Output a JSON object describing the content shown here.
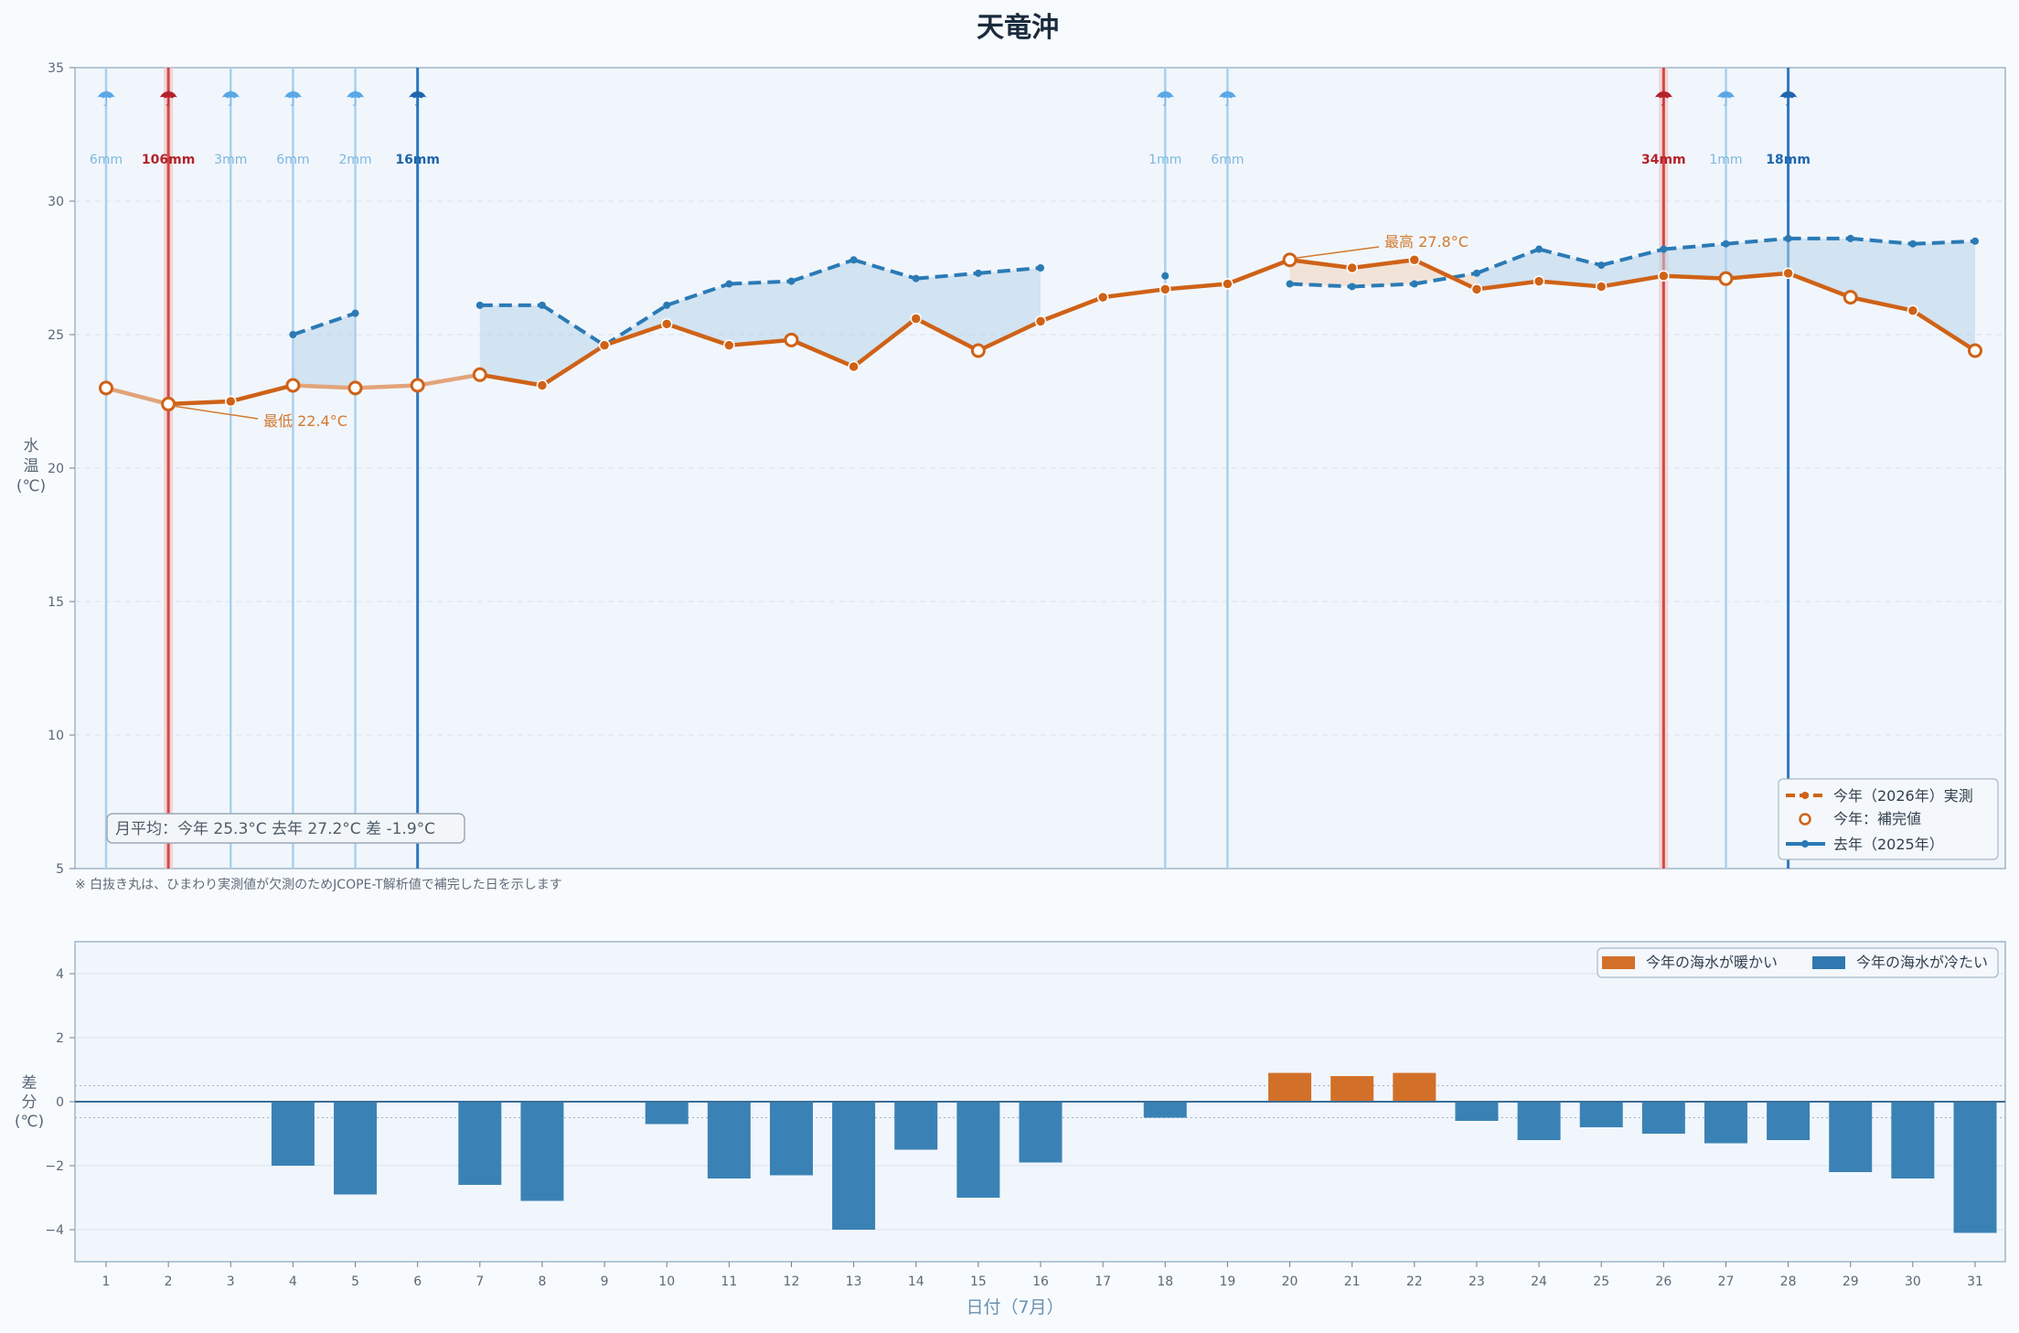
{
  "title": "天竜沖",
  "chart_data": [
    {
      "type": "line",
      "x": [
        1,
        2,
        3,
        4,
        5,
        6,
        7,
        8,
        9,
        10,
        11,
        12,
        13,
        14,
        15,
        16,
        17,
        18,
        19,
        20,
        21,
        22,
        23,
        24,
        25,
        26,
        27,
        28,
        29,
        30,
        31
      ],
      "series": [
        {
          "name": "今年（2026年）実測",
          "color": "#cf6217",
          "values": [
            23.0,
            22.4,
            22.5,
            23.1,
            23.0,
            23.1,
            23.5,
            23.1,
            24.6,
            25.4,
            24.6,
            24.8,
            23.8,
            25.6,
            24.4,
            25.5,
            26.4,
            26.7,
            26.9,
            27.8,
            27.5,
            27.8,
            26.7,
            27.0,
            26.8,
            27.2,
            27.1,
            27.3,
            26.4,
            25.9,
            24.4
          ],
          "imputed_days": [
            1,
            2,
            4,
            5,
            6,
            7,
            12,
            15,
            20,
            27,
            29,
            31
          ]
        },
        {
          "name": "去年（2025年）",
          "color": "#2a7ab5",
          "values": [
            null,
            null,
            null,
            25.0,
            25.8,
            null,
            26.1,
            26.1,
            24.6,
            26.1,
            26.9,
            27.0,
            27.8,
            27.1,
            27.3,
            27.5,
            null,
            27.2,
            null,
            26.9,
            26.8,
            26.9,
            27.3,
            28.2,
            27.6,
            28.2,
            28.4,
            28.6,
            28.6,
            28.4,
            28.5
          ]
        }
      ],
      "ylim": [
        5,
        35
      ],
      "yticks": [
        5,
        10,
        15,
        20,
        25,
        30,
        35
      ],
      "ylabel": "水温(℃)",
      "imputed_legend": "今年：補完値",
      "rain": [
        {
          "day": 1,
          "mm": 6,
          "label": "6mm",
          "level": "light"
        },
        {
          "day": 2,
          "mm": 106,
          "label": "106mm",
          "level": "heavy"
        },
        {
          "day": 3,
          "mm": 3,
          "label": "3mm",
          "level": "light"
        },
        {
          "day": 4,
          "mm": 6,
          "label": "6mm",
          "level": "light"
        },
        {
          "day": 5,
          "mm": 2,
          "label": "2mm",
          "level": "light"
        },
        {
          "day": 6,
          "mm": 16,
          "label": "16mm",
          "level": "moderate"
        },
        {
          "day": 18,
          "mm": 1,
          "label": "1mm",
          "level": "light"
        },
        {
          "day": 19,
          "mm": 6,
          "label": "6mm",
          "level": "light"
        },
        {
          "day": 26,
          "mm": 34,
          "label": "34mm",
          "level": "heavy"
        },
        {
          "day": 27,
          "mm": 1,
          "label": "1mm",
          "level": "light"
        },
        {
          "day": 28,
          "mm": 18,
          "label": "18mm",
          "level": "moderate"
        }
      ],
      "annotations": {
        "min": {
          "day": 2,
          "value": 22.4,
          "text": "最低 22.4°C"
        },
        "max": {
          "day": 20,
          "value": 27.8,
          "text": "最高 27.8°C"
        }
      },
      "monthly_avg_text": "月平均：今年 25.3°C  去年 27.2°C  差 -1.9°C",
      "legend_position": "bottom-right",
      "grid": true
    },
    {
      "type": "bar",
      "categories": [
        1,
        2,
        3,
        4,
        5,
        6,
        7,
        8,
        9,
        10,
        11,
        12,
        13,
        14,
        15,
        16,
        17,
        18,
        19,
        20,
        21,
        22,
        23,
        24,
        25,
        26,
        27,
        28,
        29,
        30,
        31
      ],
      "values": [
        null,
        null,
        null,
        -2.0,
        -2.9,
        null,
        -2.6,
        -3.1,
        null,
        -0.7,
        -2.4,
        -2.3,
        -4.0,
        -1.5,
        -3.0,
        -1.9,
        null,
        -0.5,
        null,
        0.9,
        0.8,
        0.9,
        -0.6,
        -1.2,
        -0.8,
        -1.0,
        -1.3,
        -1.2,
        -2.2,
        -2.4,
        -4.1
      ],
      "ylim": [
        -5,
        5
      ],
      "yticks": [
        -4,
        -2,
        0,
        2,
        4
      ],
      "ylabel": "差分(℃)",
      "xlabel": "日付（7月）",
      "legend": [
        {
          "label": "今年の海水が暖かい",
          "color": "#d2702a"
        },
        {
          "label": "今年の海水が冷たい",
          "color": "#2f78b0"
        }
      ],
      "legend_position": "top-right",
      "grid": true
    }
  ],
  "footnote": "※ 白抜き丸は、ひまわり実測値が欠測のためJCOPE-T解析値で補完した日を示します",
  "colors": {
    "warm": "#d2702a",
    "cold": "#2f78b0",
    "rain_light": "#a9d1ee",
    "rain_moderate": "#2f78c0",
    "rain_heavy": "#d04848"
  }
}
